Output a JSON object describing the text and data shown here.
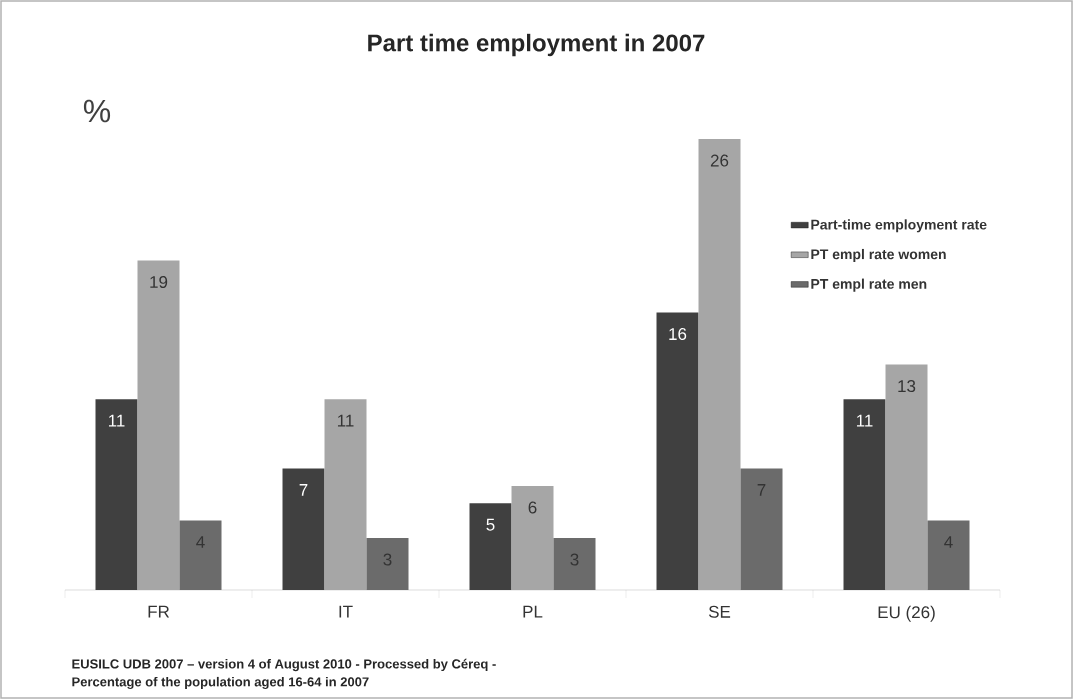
{
  "chart_data": {
    "type": "bar",
    "title": "Part time employment in 2007",
    "ylabel": "%",
    "categories": [
      "FR",
      "IT",
      "PL",
      "SE",
      "EU (26)"
    ],
    "series": [
      {
        "name": "Part-time employment rate",
        "color": "#404040",
        "values": [
          11,
          7,
          5,
          16,
          11
        ]
      },
      {
        "name": "PT empl rate women",
        "color": "#a6a6a6",
        "values": [
          19,
          11,
          6,
          26,
          13
        ]
      },
      {
        "name": "PT empl rate men",
        "color": "#6b6b6b",
        "values": [
          4,
          3,
          3,
          7,
          4
        ]
      }
    ],
    "data_labels": true,
    "legend": "top right",
    "annotations": [
      "EUSILC UDB 2007 – version 4 of August 2010 - Processed by Céreq -",
      "Percentage of the population aged  16-64 in 2007"
    ]
  }
}
